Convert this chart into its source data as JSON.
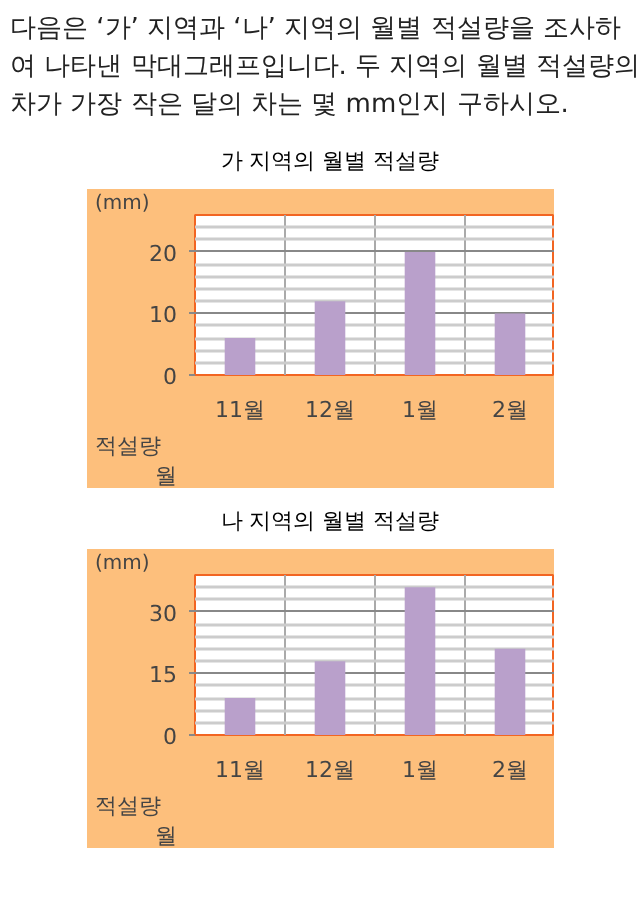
{
  "chart_data": [
    {
      "type": "bar",
      "title": "가 지역의 월별 적설량",
      "annotations": [
        "다음은 ‘가’ 지역과 ‘나’ 지역의 월별 적설량을 조사하여 나타낸 막대그래프입니다. 두 지역의 월별 적설량의 차가 가장 작은 달의 차는 몇 mm인지 구하시오.",
        "적설량"
      ],
      "xlabel": "월",
      "ylabel": "(mm)",
      "categories": [
        "11월",
        "12월",
        "1월",
        "2월"
      ],
      "values": [
        6,
        12,
        20,
        10
      ],
      "color": "#b9a0cb",
      "ylim": [
        0,
        26
      ],
      "yticks": [
        0,
        {
          "value": 2,
          "label": null
        },
        {
          "value": 4,
          "label": null
        },
        {
          "value": 6,
          "label": null
        },
        {
          "value": 8,
          "label": null
        },
        10,
        {
          "value": 12,
          "label": null
        },
        {
          "value": 14,
          "label": null
        },
        {
          "value": 16,
          "label": null
        },
        {
          "value": 18,
          "label": null
        },
        20,
        {
          "value": 22,
          "label": null
        },
        {
          "value": 24,
          "label": null
        }
      ],
      "grid": true
    },
    {
      "type": "bar",
      "title": "나 지역의 월별 적설량",
      "annotations": [
        "적설량"
      ],
      "xlabel": "월",
      "ylabel": "(mm)",
      "categories": [
        "11월",
        "12월",
        "1월",
        "2월"
      ],
      "values": [
        9,
        18,
        36,
        21
      ],
      "color": "#b9a0cb",
      "ylim": [
        0,
        39
      ],
      "yticks": [
        0,
        {
          "value": 3,
          "label": null
        },
        {
          "value": 6,
          "label": null
        },
        {
          "value": 9,
          "label": null
        },
        {
          "value": 12,
          "label": null
        },
        15,
        {
          "value": 18,
          "label": null
        },
        {
          "value": 21,
          "label": null
        },
        {
          "value": 24,
          "label": null
        },
        {
          "value": 27,
          "label": null
        },
        30,
        {
          "value": 33,
          "label": null
        },
        {
          "value": 36,
          "label": null
        }
      ],
      "grid": true
    }
  ]
}
